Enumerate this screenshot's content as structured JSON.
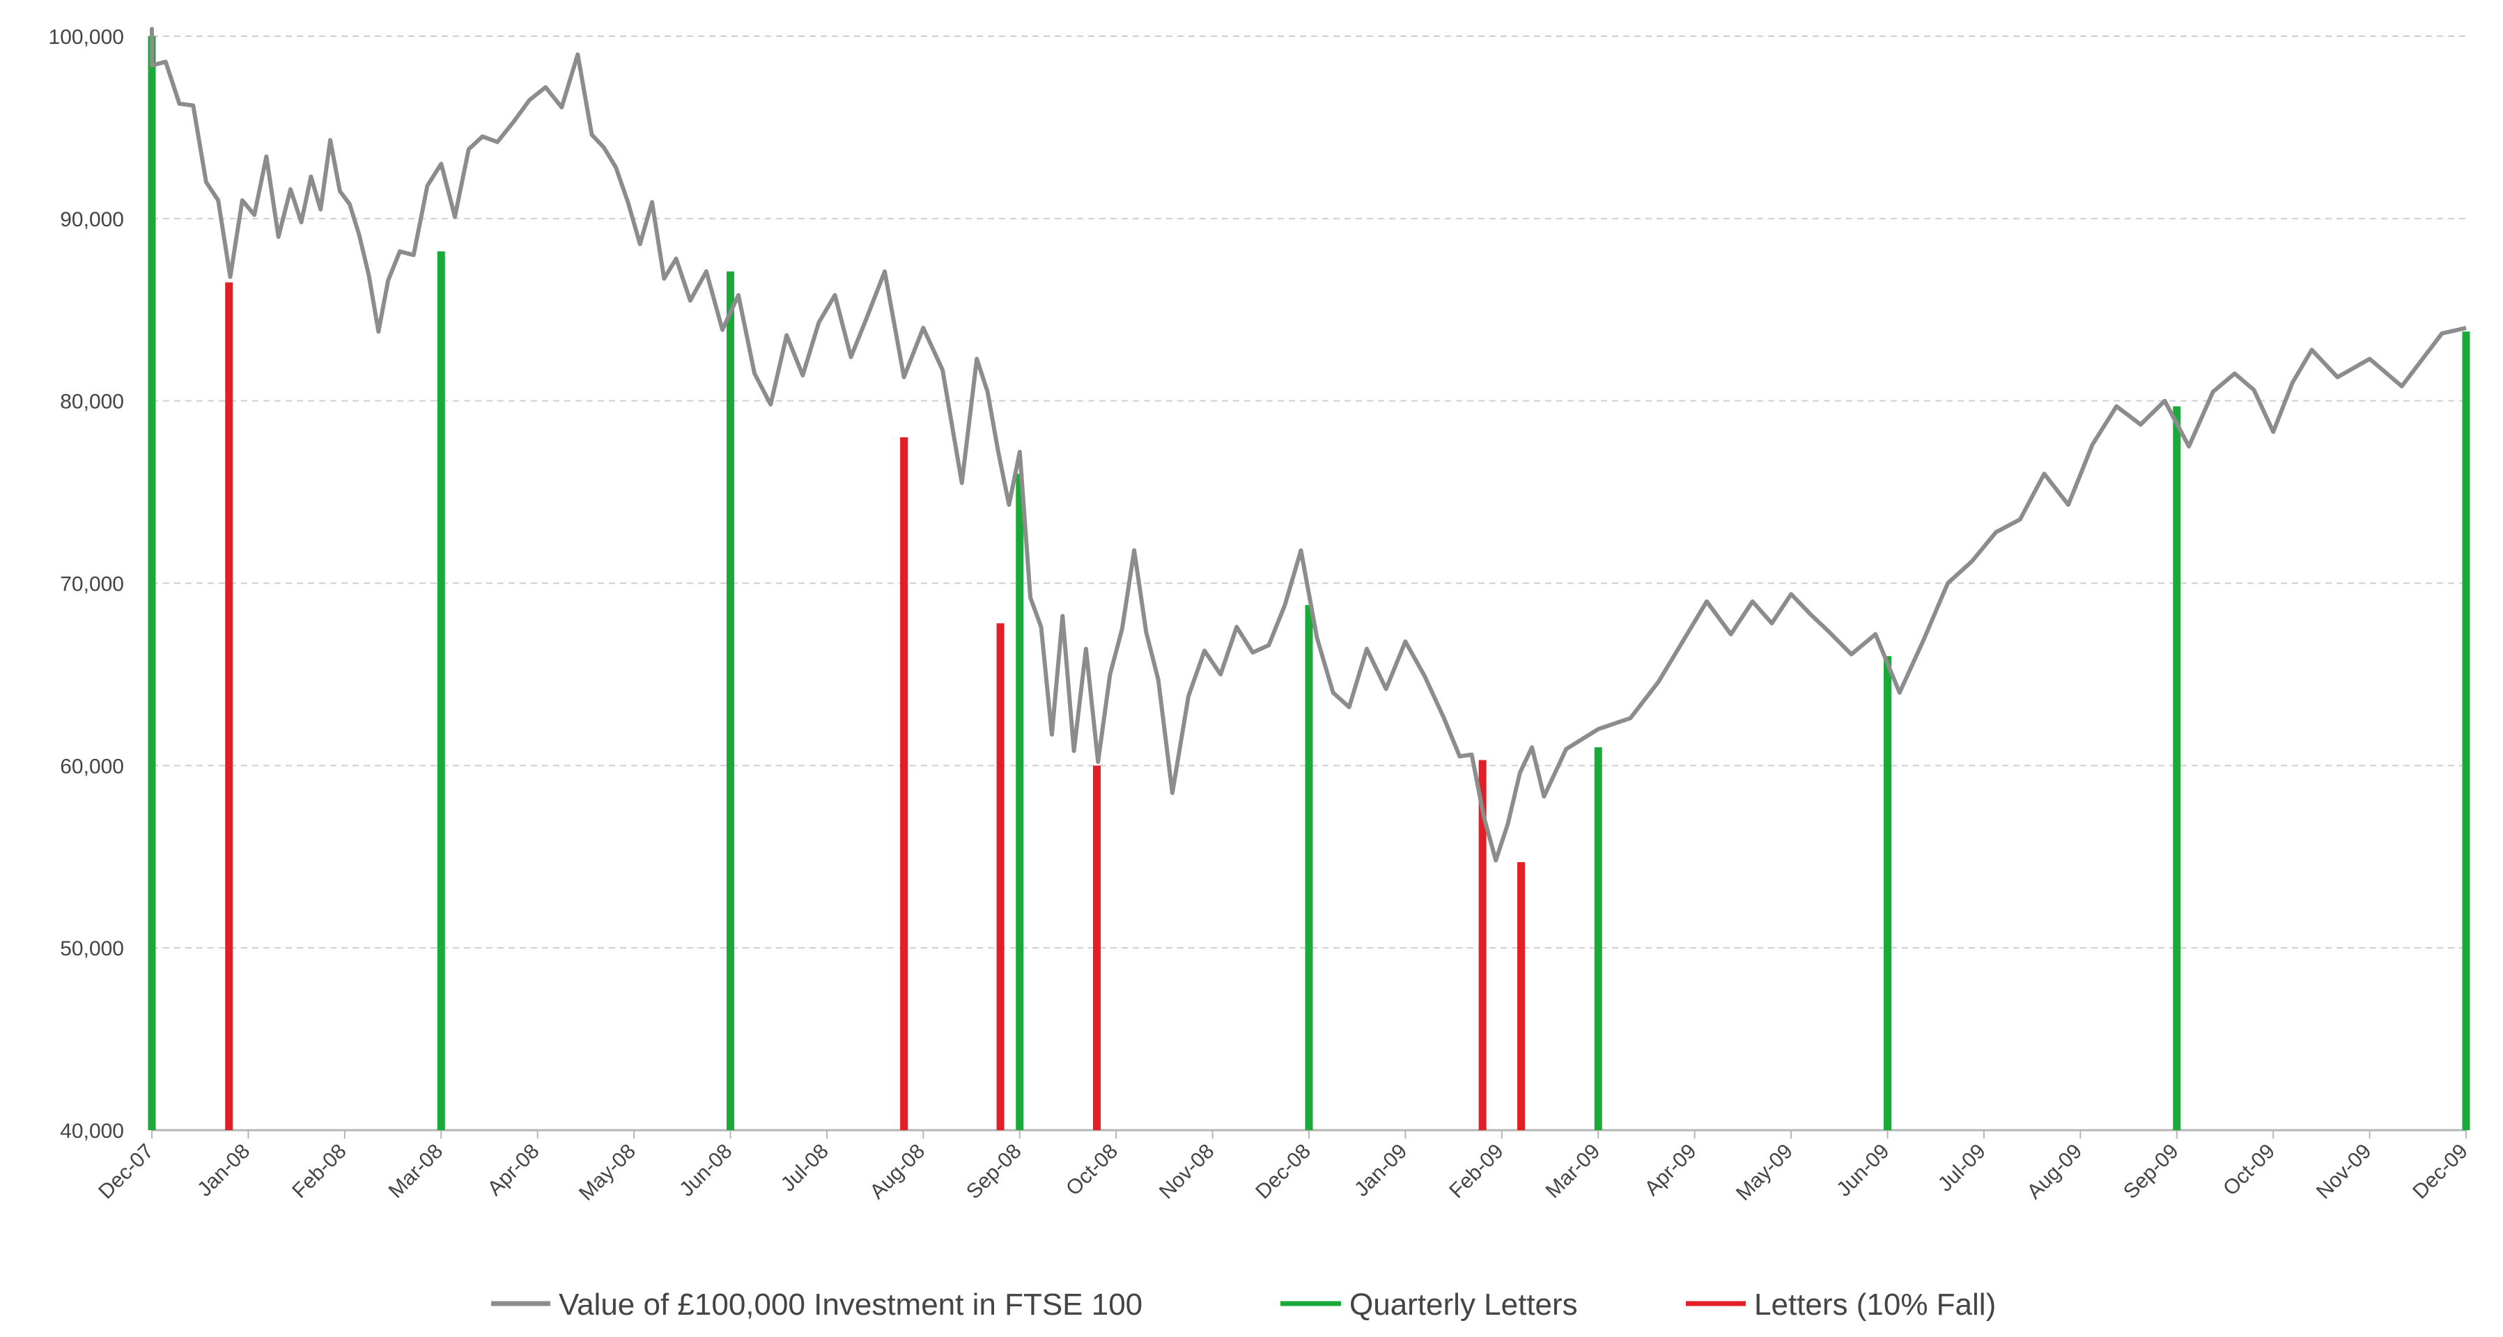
{
  "chart_data": {
    "type": "line",
    "ylim": [
      40000,
      100000
    ],
    "y_ticks": [
      "40,000",
      "50,000",
      "60,000",
      "70,000",
      "80,000",
      "90,000",
      "100,000"
    ],
    "x_ticks": [
      "Dec-07",
      "Jan-08",
      "Feb-08",
      "Mar-08",
      "Apr-08",
      "May-08",
      "Jun-08",
      "Jul-08",
      "Aug-08",
      "Sep-08",
      "Oct-08",
      "Nov-08",
      "Dec-08",
      "Jan-09",
      "Feb-09",
      "Mar-09",
      "Apr-09",
      "May-09",
      "Jun-09",
      "Jul-09",
      "Aug-09",
      "Sep-09",
      "Oct-09",
      "Nov-09",
      "Dec-09"
    ],
    "grid": "horizontal dashed",
    "legend_position": "bottom",
    "series": [
      {
        "name": "Value of £100,000 Investment in FTSE 100",
        "color": "#8c8c8c",
        "style": "line",
        "points": [
          [
            "Dec-07",
            100000
          ],
          [
            "Dec-07",
            99200
          ],
          [
            "Dec-07",
            100400
          ],
          [
            "Dec-07",
            98400
          ],
          [
            "Dec-07",
            98600
          ],
          [
            "Dec-07",
            96300
          ],
          [
            "Dec-07",
            96200
          ],
          [
            "Jan-08",
            92000
          ],
          [
            "Jan-08",
            91000
          ],
          [
            "Jan-08",
            86800
          ],
          [
            "Jan-08",
            91000
          ],
          [
            "Jan-08",
            90200
          ],
          [
            "Jan-08",
            93400
          ],
          [
            "Jan-08",
            89000
          ],
          [
            "Jan-08",
            91600
          ],
          [
            "Feb-08",
            89800
          ],
          [
            "Feb-08",
            92300
          ],
          [
            "Feb-08",
            90500
          ],
          [
            "Feb-08",
            94300
          ],
          [
            "Feb-08",
            91500
          ],
          [
            "Feb-08",
            90800
          ],
          [
            "Feb-08",
            89100
          ],
          [
            "Feb-08",
            86900
          ],
          [
            "Feb-08",
            83800
          ],
          [
            "Feb-08",
            86600
          ],
          [
            "Mar-08",
            88200
          ],
          [
            "Mar-08",
            88000
          ],
          [
            "Mar-08",
            91800
          ],
          [
            "Mar-08",
            93000
          ],
          [
            "Mar-08",
            90100
          ],
          [
            "Mar-08",
            93800
          ],
          [
            "Mar-08",
            94500
          ],
          [
            "Apr-08",
            94200
          ],
          [
            "Apr-08",
            95300
          ],
          [
            "Apr-08",
            96500
          ],
          [
            "Apr-08",
            97200
          ],
          [
            "Apr-08",
            96100
          ],
          [
            "Apr-08",
            99000
          ],
          [
            "May-08",
            94600
          ],
          [
            "May-08",
            93900
          ],
          [
            "May-08",
            92800
          ],
          [
            "May-08",
            90900
          ],
          [
            "May-08",
            88600
          ],
          [
            "May-08",
            90900
          ],
          [
            "May-08",
            86700
          ],
          [
            "May-08",
            87800
          ],
          [
            "Jun-08",
            85500
          ],
          [
            "Jun-08",
            87100
          ],
          [
            "Jun-08",
            83900
          ],
          [
            "Jun-08",
            85800
          ],
          [
            "Jun-08",
            81500
          ],
          [
            "Jun-08",
            79800
          ],
          [
            "Jul-08",
            83600
          ],
          [
            "Jul-08",
            81400
          ],
          [
            "Jul-08",
            84300
          ],
          [
            "Jul-08",
            85800
          ],
          [
            "Jul-08",
            82400
          ],
          [
            "Jul-08",
            84600
          ],
          [
            "Aug-08",
            87100
          ],
          [
            "Aug-08",
            81300
          ],
          [
            "Aug-08",
            84000
          ],
          [
            "Aug-08",
            81700
          ],
          [
            "Aug-08",
            75500
          ],
          [
            "Sep-08",
            82300
          ],
          [
            "Sep-08",
            80500
          ],
          [
            "Sep-08",
            77200
          ],
          [
            "Sep-08",
            74300
          ],
          [
            "Sep-08",
            77200
          ],
          [
            "Sep-08",
            69200
          ],
          [
            "Sep-08",
            67600
          ],
          [
            "Sep-08",
            61700
          ],
          [
            "Sep-08",
            68200
          ],
          [
            "Oct-08",
            60800
          ],
          [
            "Oct-08",
            66400
          ],
          [
            "Oct-08",
            60200
          ],
          [
            "Oct-08",
            65000
          ],
          [
            "Oct-08",
            67500
          ],
          [
            "Oct-08",
            71800
          ],
          [
            "Oct-08",
            67300
          ],
          [
            "Oct-08",
            64700
          ],
          [
            "Nov-08",
            58500
          ],
          [
            "Nov-08",
            63800
          ],
          [
            "Nov-08",
            66300
          ],
          [
            "Nov-08",
            65000
          ],
          [
            "Nov-08",
            67600
          ],
          [
            "Nov-08",
            66200
          ],
          [
            "Dec-08",
            66600
          ],
          [
            "Dec-08",
            68800
          ],
          [
            "Dec-08",
            71800
          ],
          [
            "Dec-08",
            67000
          ],
          [
            "Dec-08",
            64000
          ],
          [
            "Dec-08",
            63200
          ],
          [
            "Jan-09",
            66400
          ],
          [
            "Jan-09",
            64200
          ],
          [
            "Jan-09",
            66800
          ],
          [
            "Jan-09",
            64900
          ],
          [
            "Jan-09",
            62600
          ],
          [
            "Feb-09",
            60500
          ],
          [
            "Feb-09",
            60600
          ],
          [
            "Feb-09",
            57200
          ],
          [
            "Feb-09",
            54800
          ],
          [
            "Feb-09",
            56800
          ],
          [
            "Feb-09",
            59600
          ],
          [
            "Feb-09",
            61000
          ],
          [
            "Feb-09",
            58300
          ],
          [
            "Mar-09",
            60900
          ],
          [
            "Mar-09",
            62000
          ],
          [
            "Mar-09",
            62600
          ],
          [
            "Apr-09",
            64600
          ],
          [
            "Apr-09",
            66800
          ],
          [
            "Apr-09",
            69000
          ],
          [
            "Apr-09",
            67200
          ],
          [
            "May-09",
            69000
          ],
          [
            "May-09",
            67800
          ],
          [
            "May-09",
            69400
          ],
          [
            "May-09",
            68300
          ],
          [
            "May-09",
            67300
          ],
          [
            "Jun-09",
            66100
          ],
          [
            "Jun-09",
            67200
          ],
          [
            "Jun-09",
            64000
          ],
          [
            "Jun-09",
            66900
          ],
          [
            "Jul-09",
            70000
          ],
          [
            "Jul-09",
            71200
          ],
          [
            "Jul-09",
            72800
          ],
          [
            "Jul-09",
            73500
          ],
          [
            "Aug-09",
            76000
          ],
          [
            "Aug-09",
            74300
          ],
          [
            "Aug-09",
            77600
          ],
          [
            "Aug-09",
            79700
          ],
          [
            "Sep-09",
            78700
          ],
          [
            "Sep-09",
            80000
          ],
          [
            "Sep-09",
            77500
          ],
          [
            "Sep-09",
            80500
          ],
          [
            "Oct-09",
            81500
          ],
          [
            "Oct-09",
            80600
          ],
          [
            "Oct-09",
            78300
          ],
          [
            "Oct-09",
            81000
          ],
          [
            "Oct-09",
            82800
          ],
          [
            "Nov-09",
            81300
          ],
          [
            "Nov-09",
            82300
          ],
          [
            "Nov-09",
            80800
          ],
          [
            "Dec-09",
            83700
          ],
          [
            "Dec-09",
            84000
          ]
        ]
      },
      {
        "name": "Quarterly Letters",
        "color": "#1aaa3a",
        "style": "vertical-drops",
        "points": [
          [
            "Dec-07",
            100000
          ],
          [
            "Mar-08",
            88200
          ],
          [
            "Jun-08",
            87100
          ],
          [
            "Sep-08",
            76000
          ],
          [
            "Dec-08",
            68800
          ],
          [
            "Mar-09",
            61000
          ],
          [
            "Jun-09",
            66000
          ],
          [
            "Sep-09",
            79700
          ],
          [
            "Dec-09",
            83800
          ]
        ]
      },
      {
        "name": "Letters (10% Fall)",
        "color": "#e41e26",
        "style": "vertical-drops",
        "points": [
          [
            "Jan-08",
            86500
          ],
          [
            "Aug-08",
            78000
          ],
          [
            "Sep-08",
            67800
          ],
          [
            "Oct-08",
            60000
          ],
          [
            "Feb-09",
            60300
          ],
          [
            "Feb-09",
            54700
          ]
        ]
      }
    ]
  }
}
